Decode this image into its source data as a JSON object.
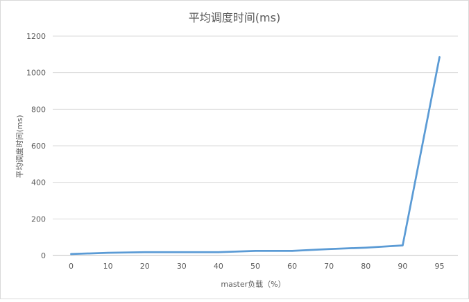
{
  "chart_data": {
    "type": "line",
    "title": "平均调度时间(ms)",
    "xlabel": "master负载（%）",
    "ylabel": "平均调度时间(ms)",
    "categories": [
      "0",
      "10",
      "20",
      "30",
      "40",
      "50",
      "60",
      "70",
      "80",
      "90",
      "95"
    ],
    "series": [
      {
        "values": [
          8,
          15,
          18,
          18,
          18,
          25,
          25,
          35,
          43,
          55,
          1085
        ]
      }
    ],
    "ylim": [
      0,
      1200
    ],
    "yticks": [
      "0",
      "200",
      "400",
      "600",
      "800",
      "1000",
      "1200"
    ],
    "grid": "horizontal",
    "legend": "none",
    "colors": {
      "line": "#5b9bd5",
      "grid": "#d9d9d9",
      "axis": "#bfbfbf",
      "text": "#595959"
    }
  }
}
